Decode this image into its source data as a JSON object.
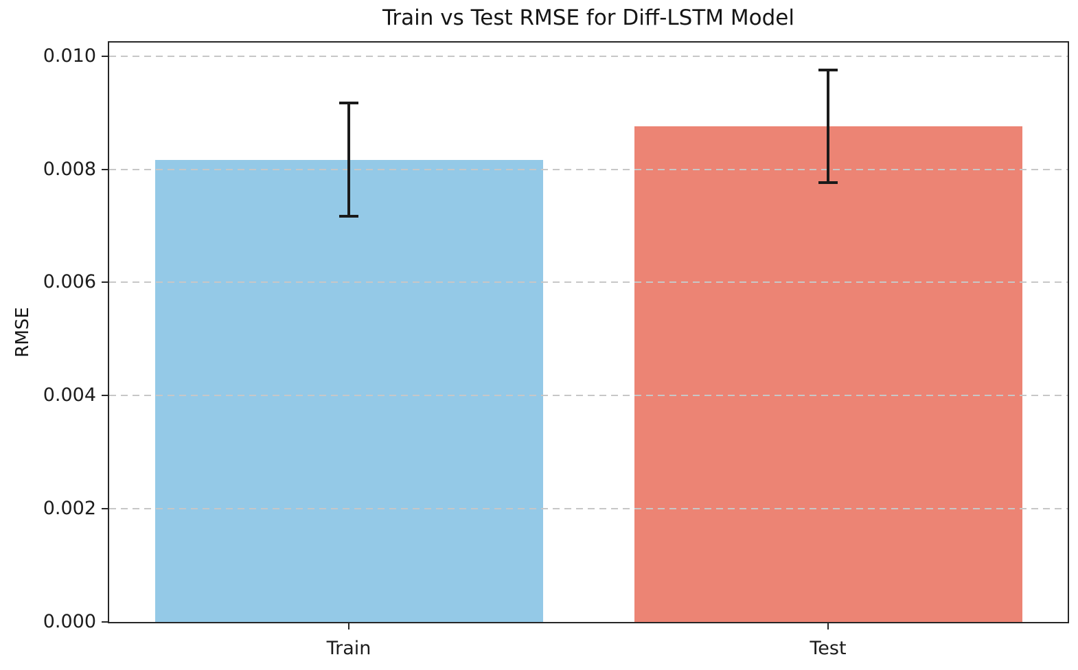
{
  "figure": {
    "background": "#ffffff"
  },
  "chart_data": {
    "type": "bar",
    "title": "Train vs Test RMSE for Diff-LSTM Model",
    "xlabel": "",
    "ylabel": "RMSE",
    "categories": [
      "Train",
      "Test"
    ],
    "values": [
      0.00817,
      0.00876
    ],
    "errors": [
      0.001,
      0.001
    ],
    "bar_colors": [
      "#94C9E7",
      "#EC8474"
    ],
    "error_bar_color": "#1a1a1a",
    "ylim": [
      0,
      0.01024
    ],
    "yticks": [
      0,
      0.002,
      0.004,
      0.006,
      0.008,
      0.01
    ],
    "ytick_labels": [
      "0.000",
      "0.002",
      "0.004",
      "0.006",
      "0.008",
      "0.010"
    ],
    "grid": {
      "axis": "y",
      "style": "dashed",
      "color": "#c7c7c7",
      "drawn_above_bars": true
    },
    "legend": null,
    "bar_width_fraction": 0.405,
    "axis_color": "#262626",
    "text_color": "#1c1c1c"
  }
}
